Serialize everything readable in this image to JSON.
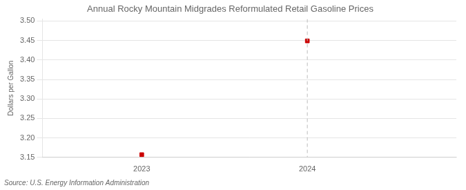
{
  "chart_data": {
    "type": "scatter",
    "title": "Annual Rocky Mountain Midgrades Reformulated Retail Gasoline Prices",
    "ylabel": "Dollars per Gallon",
    "source": "Source: U.S. Energy Information Administration",
    "x": [
      2023,
      2024
    ],
    "values": [
      3.157,
      3.449
    ],
    "color": "#cc0000",
    "marker": "square",
    "xlim": [
      2022.4,
      2024.9
    ],
    "ylim": [
      3.15,
      3.505
    ],
    "xticks": [
      2023,
      2024
    ],
    "yticks": [
      3.15,
      {
        "value": 3.2,
        "label": "3.20"
      },
      3.25,
      {
        "value": 3.3,
        "label": "3.30"
      },
      3.35,
      {
        "value": 3.4,
        "label": "3.40"
      },
      3.45,
      {
        "value": 3.5,
        "label": "3.50"
      }
    ],
    "vlines": [
      {
        "x": 2024,
        "color": "#bbbbbb",
        "line_style": "dashed"
      }
    ],
    "grid": "y"
  }
}
